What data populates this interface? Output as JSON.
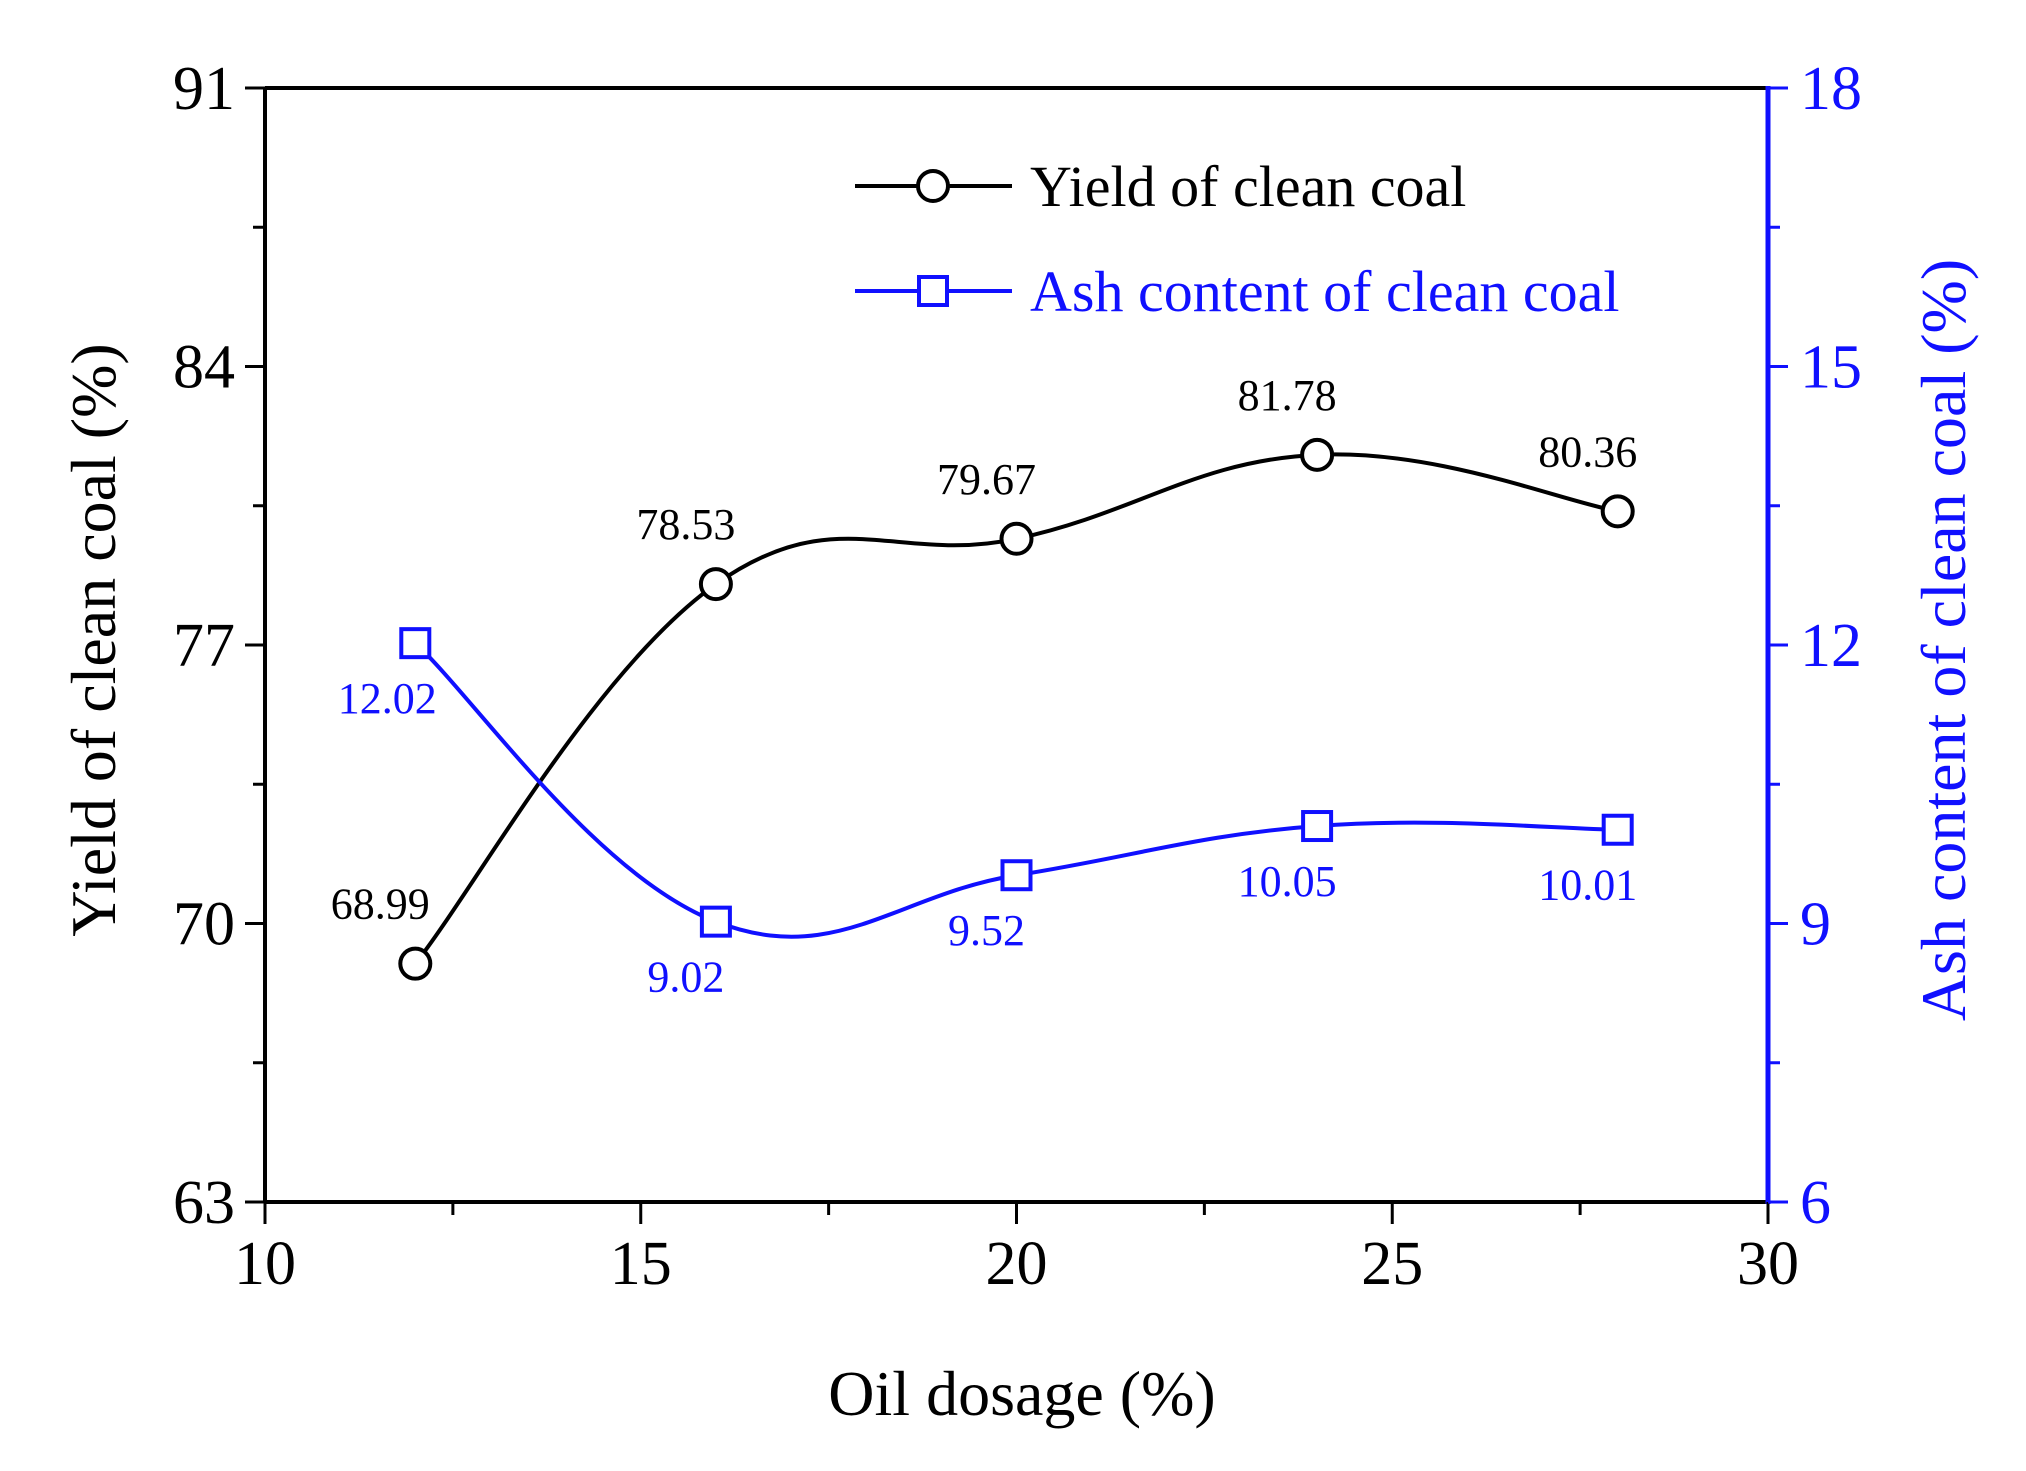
{
  "chart_data": {
    "type": "line",
    "title": "",
    "xlabel": "Oil dosage (%)",
    "ylabel": "Yield of clean coal (%)",
    "y2label": "Ash content of clean coal (%)",
    "xlim": [
      10,
      30
    ],
    "xticks": [
      10,
      15,
      20,
      25,
      30
    ],
    "ylim": [
      63,
      91
    ],
    "yticks": [
      63,
      70,
      77,
      84,
      91
    ],
    "y2lim": [
      6,
      18
    ],
    "y2ticks": [
      6,
      9,
      12,
      15,
      18
    ],
    "x": [
      12,
      16,
      20,
      24,
      28
    ],
    "legend_position": "top-right",
    "grid": false,
    "series": [
      {
        "name": "Yield of clean coal",
        "axis": "left",
        "marker": "circle",
        "color": "#000000",
        "values": [
          68.99,
          78.53,
          79.67,
          81.78,
          80.36
        ],
        "labels": [
          "68.99",
          "78.53",
          "79.67",
          "81.78",
          "80.36"
        ]
      },
      {
        "name": "Ash content of clean coal",
        "axis": "right",
        "marker": "square",
        "color": "#1010ff",
        "values": [
          12.02,
          9.02,
          9.52,
          10.05,
          10.01
        ],
        "labels": [
          "12.02",
          "9.02",
          "9.52",
          "10.05",
          "10.01"
        ]
      }
    ]
  }
}
